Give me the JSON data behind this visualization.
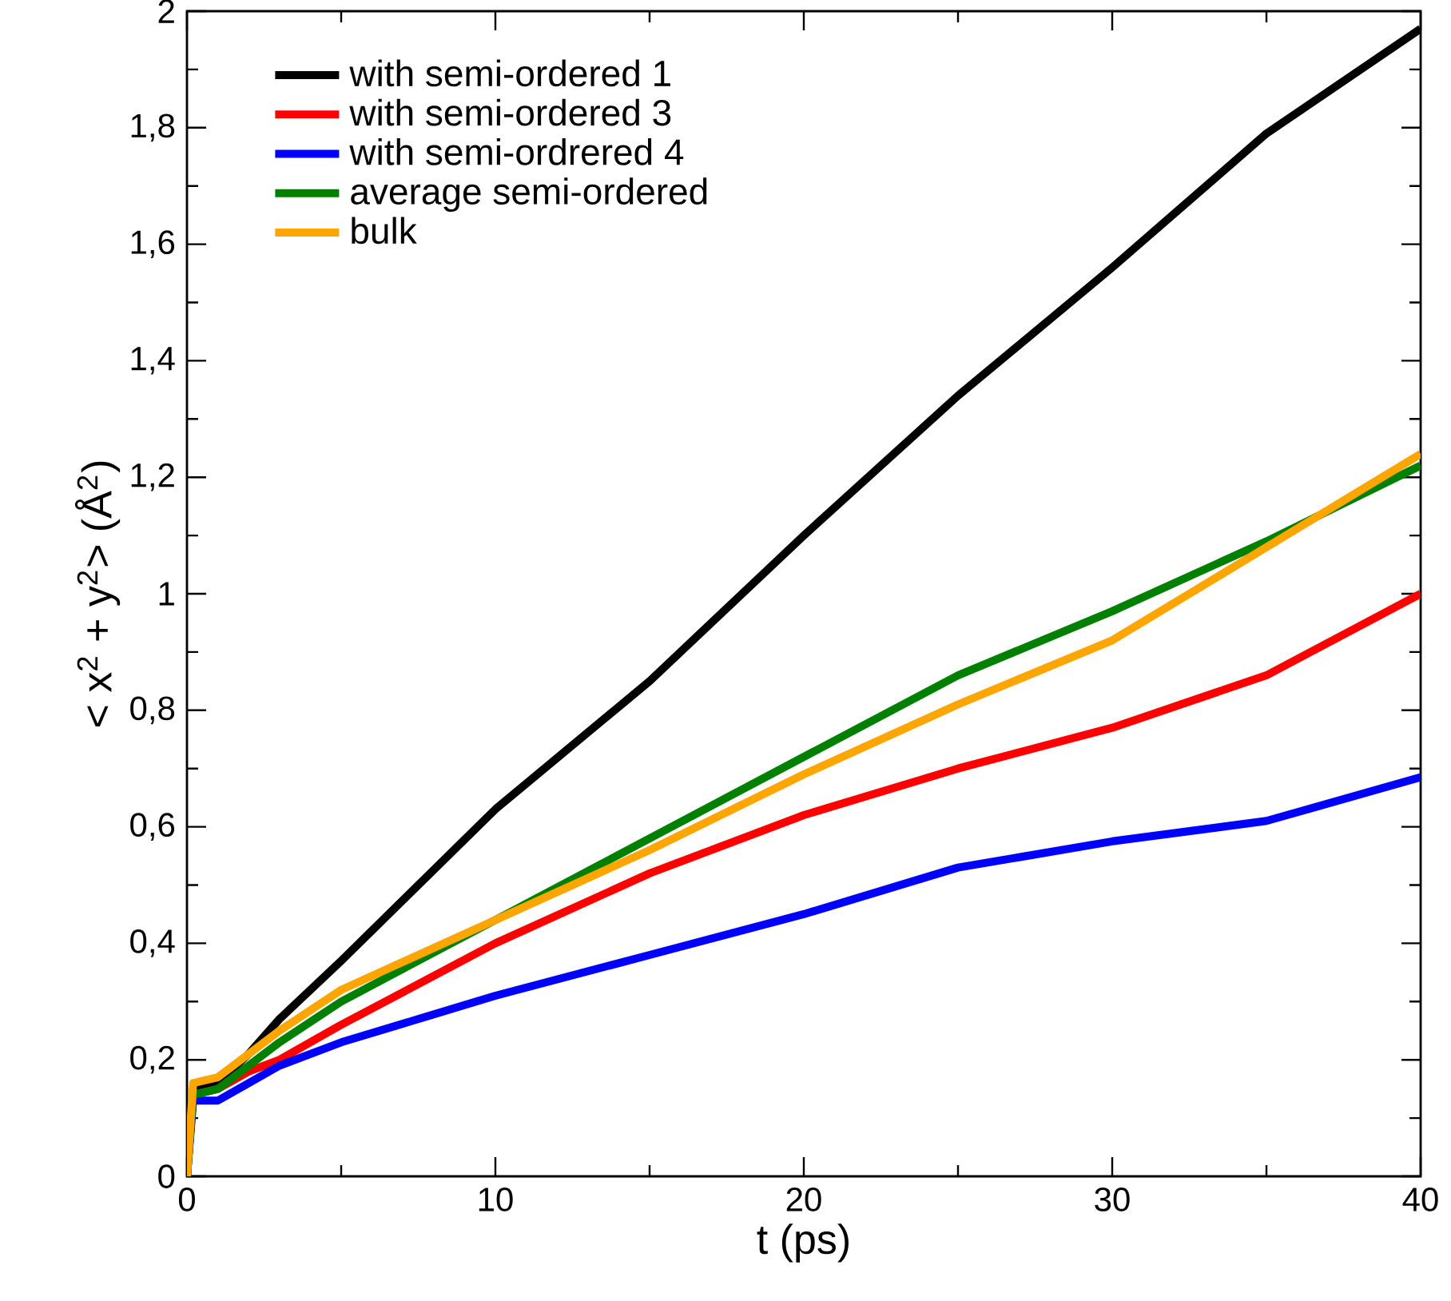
{
  "chart_data": {
    "type": "line",
    "xlabel": "t (ps)",
    "ylabel": "< x$^{2}$ + y$^{2}$> (Å$^{2}$)",
    "xlim": [
      0,
      40
    ],
    "ylim": [
      0,
      2
    ],
    "xticks": [
      0,
      10,
      20,
      30,
      40
    ],
    "yticks": [
      0,
      {
        "value": 0.2,
        "label": "0,2"
      },
      {
        "value": 0.4,
        "label": "0,4"
      },
      {
        "value": 0.6,
        "label": "0,6"
      },
      {
        "value": 0.8,
        "label": "0,8"
      },
      1,
      {
        "value": 1.2,
        "label": "1,2"
      },
      {
        "value": 1.4,
        "label": "1,4"
      },
      {
        "value": 1.6,
        "label": "1,6"
      },
      {
        "value": 1.8,
        "label": "1,8"
      },
      2
    ],
    "x": [
      0,
      0.2,
      1,
      2,
      3,
      5,
      10,
      15,
      20,
      25,
      30,
      35,
      40
    ],
    "legend": "top left",
    "grid": false,
    "marker": "none",
    "line_style": "solid",
    "series": [
      {
        "name": "with semi-ordered 1",
        "color": "#000000",
        "values": [
          0,
          0.15,
          0.16,
          0.21,
          0.27,
          0.37,
          0.63,
          0.85,
          1.1,
          1.34,
          1.56,
          1.79,
          1.97
        ]
      },
      {
        "name": "with semi-ordered 3",
        "color": "#ff0000",
        "values": [
          0,
          0.14,
          0.15,
          0.18,
          0.2,
          0.26,
          0.4,
          0.52,
          0.62,
          0.7,
          0.77,
          0.86,
          1.0
        ]
      },
      {
        "name": "with semi-ordrered 4",
        "color": "#0000ff",
        "values": [
          0,
          0.13,
          0.13,
          0.16,
          0.19,
          0.23,
          0.31,
          0.38,
          0.45,
          0.53,
          0.575,
          0.61,
          0.685
        ]
      },
      {
        "name": "average semi-ordered",
        "color": "#008000",
        "values": [
          0,
          0.14,
          0.15,
          0.19,
          0.23,
          0.3,
          0.44,
          0.58,
          0.72,
          0.86,
          0.97,
          1.09,
          1.22
        ]
      },
      {
        "name": "bulk",
        "color": "#ffa500",
        "values": [
          0,
          0.16,
          0.17,
          0.21,
          0.25,
          0.32,
          0.44,
          0.56,
          0.69,
          0.81,
          0.92,
          1.08,
          1.24
        ]
      }
    ]
  }
}
